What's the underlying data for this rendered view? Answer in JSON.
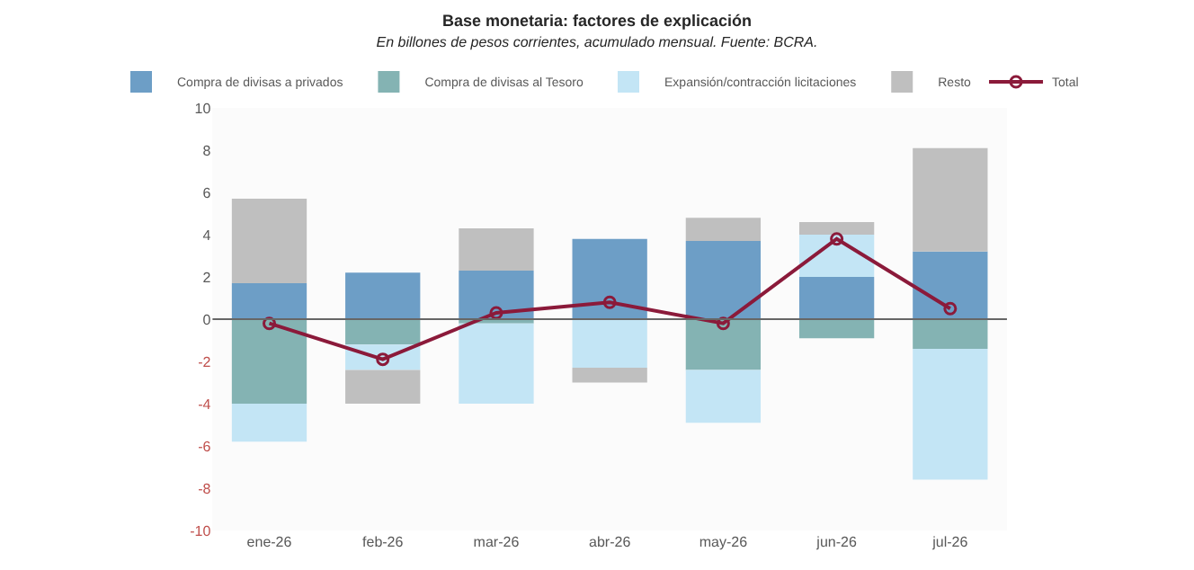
{
  "chart_data": {
    "type": "bar",
    "stacked": true,
    "title": "Base monetaria: factores de explicación",
    "subtitle": "En billones de pesos corrientes, acumulado mensual. Fuente: BCRA.",
    "categories": [
      "ene-26",
      "feb-26",
      "mar-26",
      "abr-26",
      "may-26",
      "jun-26",
      "jul-26"
    ],
    "series": [
      {
        "name": "Compra de divisas a privados",
        "color": "#6d9ec6",
        "values": [
          1.7,
          2.2,
          2.3,
          3.8,
          3.7,
          2.0,
          3.2
        ]
      },
      {
        "name": "Compra de divisas al Tesoro",
        "color": "#84b3b3",
        "values": [
          -4.0,
          -1.2,
          -0.2,
          0,
          -2.4,
          -0.9,
          -1.4
        ]
      },
      {
        "name": "Expansión/contracción licitaciones",
        "color": "#c3e5f5",
        "values": [
          -1.8,
          -1.2,
          -3.8,
          -2.3,
          -2.5,
          2.0,
          -6.2
        ]
      },
      {
        "name": "Resto",
        "color": "#bfbfbf",
        "values": [
          4.0,
          -1.6,
          2.0,
          -0.7,
          1.1,
          0.6,
          4.9
        ]
      },
      {
        "name": "Total",
        "type": "line",
        "color": "#8b1a3a",
        "marker": "circle",
        "values": [
          -0.2,
          -1.9,
          0.3,
          0.8,
          -0.2,
          3.8,
          0.5
        ]
      }
    ],
    "ylim": [
      -10,
      10
    ],
    "yticks": [
      -10,
      -8,
      -6,
      -4,
      -2,
      0,
      2,
      4,
      6,
      8,
      10
    ],
    "ref_lines": [
      {
        "axis": "y",
        "value": 0,
        "color": "#666666"
      }
    ],
    "legend": "top"
  }
}
